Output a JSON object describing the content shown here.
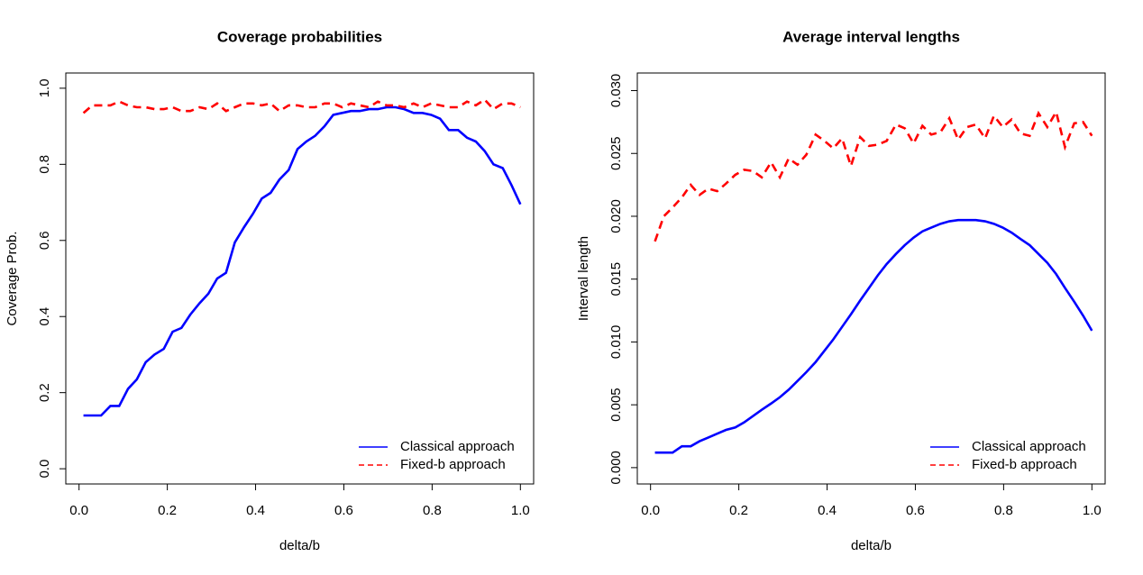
{
  "chart_data": [
    {
      "type": "line",
      "title": "Coverage probabilities",
      "xlabel": "delta/b",
      "ylabel": "Coverage Prob.",
      "xlim": [
        -0.03,
        1.03
      ],
      "ylim": [
        -0.04,
        1.04
      ],
      "xticks": [
        {
          "value": 0,
          "label": "0.0"
        },
        0.2,
        0.4,
        0.6,
        0.8,
        {
          "value": 1,
          "label": "1.0"
        }
      ],
      "yticks": [
        {
          "value": 0,
          "label": "0.0"
        },
        0.2,
        0.4,
        0.6,
        0.8,
        {
          "value": 1,
          "label": "1.0"
        }
      ],
      "legend": "bottomright",
      "grid": false,
      "x": [
        0.01,
        0.03,
        0.05,
        0.071,
        0.091,
        0.111,
        0.131,
        0.151,
        0.171,
        0.192,
        0.212,
        0.232,
        0.252,
        0.273,
        0.293,
        0.313,
        0.333,
        0.353,
        0.374,
        0.394,
        0.414,
        0.434,
        0.454,
        0.475,
        0.495,
        0.515,
        0.535,
        0.556,
        0.576,
        0.596,
        0.616,
        0.636,
        0.657,
        0.677,
        0.697,
        0.717,
        0.737,
        0.758,
        0.778,
        0.798,
        0.818,
        0.838,
        0.859,
        0.879,
        0.899,
        0.919,
        0.939,
        0.96,
        0.98,
        1.0
      ],
      "series": [
        {
          "name": "Classical approach",
          "color": "#0000ff",
          "line_style": "solid",
          "values": [
            0.14,
            0.14,
            0.14,
            0.165,
            0.165,
            0.21,
            0.235,
            0.28,
            0.3,
            0.315,
            0.36,
            0.37,
            0.405,
            0.435,
            0.46,
            0.5,
            0.515,
            0.595,
            0.635,
            0.67,
            0.71,
            0.725,
            0.76,
            0.785,
            0.84,
            0.86,
            0.875,
            0.9,
            0.93,
            0.935,
            0.94,
            0.94,
            0.945,
            0.945,
            0.95,
            0.95,
            0.945,
            0.935,
            0.935,
            0.93,
            0.92,
            0.89,
            0.89,
            0.87,
            0.86,
            0.835,
            0.8,
            0.79,
            0.745,
            0.695
          ]
        },
        {
          "name": "Fixed-b approach",
          "color": "#ff0000",
          "line_style": "dashed",
          "values": [
            0.935,
            0.955,
            0.955,
            0.955,
            0.965,
            0.955,
            0.95,
            0.95,
            0.945,
            0.945,
            0.95,
            0.94,
            0.94,
            0.95,
            0.945,
            0.96,
            0.94,
            0.95,
            0.96,
            0.96,
            0.955,
            0.96,
            0.94,
            0.955,
            0.955,
            0.95,
            0.95,
            0.96,
            0.96,
            0.95,
            0.96,
            0.955,
            0.95,
            0.965,
            0.955,
            0.955,
            0.95,
            0.96,
            0.95,
            0.96,
            0.955,
            0.95,
            0.95,
            0.965,
            0.955,
            0.97,
            0.945,
            0.96,
            0.96,
            0.95
          ]
        }
      ]
    },
    {
      "type": "line",
      "title": "Average interval lengths",
      "xlabel": "delta/b",
      "ylabel": "Interval length",
      "xlim": [
        -0.03,
        1.03
      ],
      "ylim": [
        -0.0013,
        0.0314
      ],
      "xticks": [
        {
          "value": 0,
          "label": "0.0"
        },
        0.2,
        0.4,
        0.6,
        0.8,
        {
          "value": 1,
          "label": "1.0"
        }
      ],
      "yticks": [
        {
          "value": 0,
          "label": "0.000"
        },
        0.005,
        {
          "value": 0.01,
          "label": "0.010"
        },
        0.015,
        {
          "value": 0.02,
          "label": "0.020"
        },
        0.025,
        {
          "value": 0.03,
          "label": "0.030"
        }
      ],
      "legend": "bottomright",
      "grid": false,
      "x": [
        0.01,
        0.03,
        0.05,
        0.071,
        0.091,
        0.111,
        0.131,
        0.151,
        0.171,
        0.192,
        0.212,
        0.232,
        0.252,
        0.273,
        0.293,
        0.313,
        0.333,
        0.353,
        0.374,
        0.394,
        0.414,
        0.434,
        0.454,
        0.475,
        0.495,
        0.515,
        0.535,
        0.556,
        0.576,
        0.596,
        0.616,
        0.636,
        0.657,
        0.677,
        0.697,
        0.717,
        0.737,
        0.758,
        0.778,
        0.798,
        0.818,
        0.838,
        0.859,
        0.879,
        0.899,
        0.919,
        0.939,
        0.96,
        0.98,
        1.0
      ],
      "series": [
        {
          "name": "Classical approach",
          "color": "#0000ff",
          "line_style": "solid",
          "values": [
            0.0012,
            0.0012,
            0.0012,
            0.0017,
            0.0017,
            0.0021,
            0.0024,
            0.0027,
            0.003,
            0.0032,
            0.0036,
            0.0041,
            0.0046,
            0.0051,
            0.0056,
            0.0062,
            0.0069,
            0.0076,
            0.0084,
            0.0093,
            0.0102,
            0.0112,
            0.0122,
            0.0133,
            0.0143,
            0.0153,
            0.0162,
            0.017,
            0.0177,
            0.0183,
            0.0188,
            0.0191,
            0.0194,
            0.0196,
            0.0197,
            0.0197,
            0.0197,
            0.0196,
            0.0194,
            0.0191,
            0.0187,
            0.0182,
            0.0177,
            0.017,
            0.0163,
            0.0154,
            0.0143,
            0.0132,
            0.0121,
            0.0109
          ]
        },
        {
          "name": "Fixed-b approach",
          "color": "#ff0000",
          "line_style": "dashed",
          "values": [
            0.018,
            0.02,
            0.0207,
            0.0215,
            0.0225,
            0.0217,
            0.0222,
            0.022,
            0.0226,
            0.0233,
            0.0237,
            0.0236,
            0.0231,
            0.0243,
            0.0231,
            0.0246,
            0.0241,
            0.0249,
            0.0265,
            0.026,
            0.0254,
            0.0262,
            0.024,
            0.0263,
            0.0256,
            0.0257,
            0.026,
            0.0273,
            0.027,
            0.0258,
            0.0272,
            0.0265,
            0.0267,
            0.0278,
            0.0261,
            0.0271,
            0.0273,
            0.0262,
            0.028,
            0.0271,
            0.0277,
            0.0266,
            0.0264,
            0.0282,
            0.0271,
            0.0283,
            0.0255,
            0.0274,
            0.0275,
            0.0264
          ]
        }
      ]
    }
  ]
}
